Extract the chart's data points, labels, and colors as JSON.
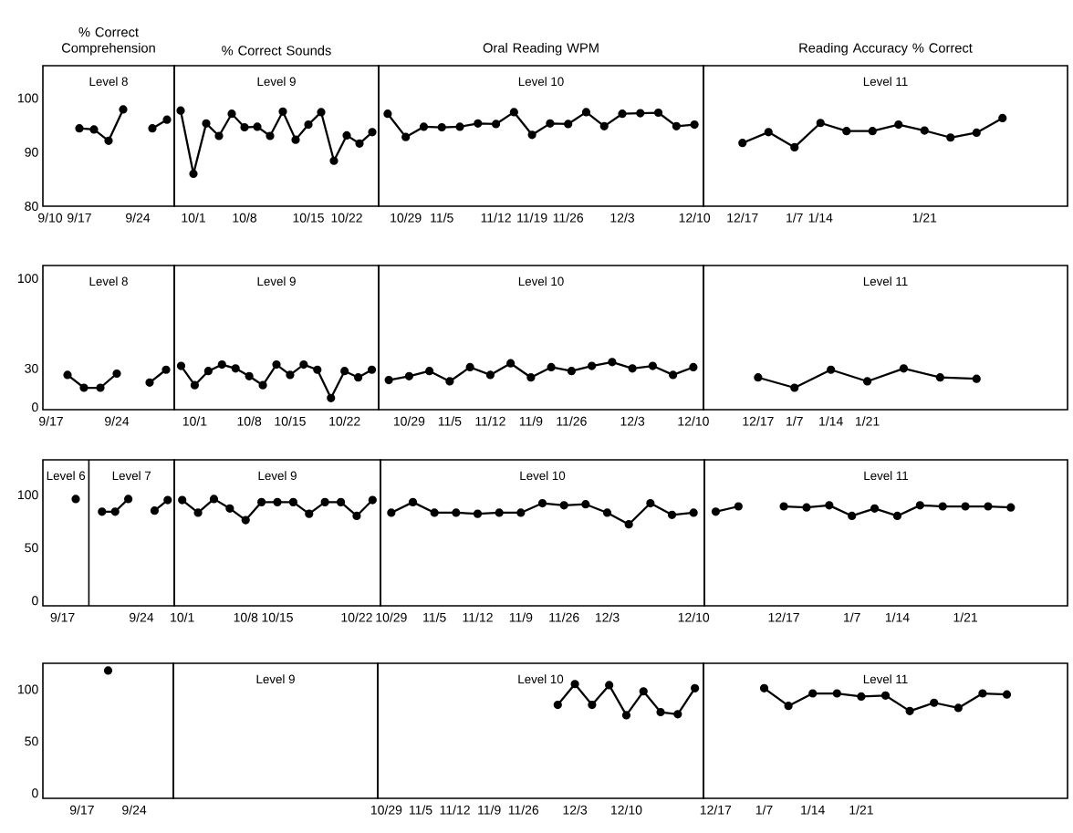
{
  "chart_data": [
    {
      "type": "line",
      "title": "% Correct Comprehension",
      "subtitle": "Level 8",
      "categories": [
        "9/10",
        null,
        "9/17",
        null,
        null,
        null,
        "9/24",
        null,
        null
      ],
      "values": [
        null,
        null,
        94.4,
        94.2,
        92.1,
        97.9,
        null,
        94.4,
        96
      ],
      "color": "#000000",
      "marker": "circle",
      "line_style": "solid",
      "ylim": [
        80,
        106
      ],
      "yticks": [
        80,
        90,
        100
      ]
    },
    {
      "type": "line",
      "title": "% Correct Sounds",
      "subtitle": "Level 9",
      "categories": [
        null,
        "10/1",
        null,
        null,
        null,
        "10/8",
        null,
        null,
        null,
        null,
        "10/15",
        null,
        null,
        "10/22",
        null,
        null
      ],
      "values": [
        97.7,
        86,
        95.3,
        93,
        97.1,
        94.6,
        94.7,
        93,
        97.5,
        92.3,
        95.1,
        97.4,
        88.4,
        93.1,
        91.6,
        93.7
      ],
      "color": "#000000",
      "marker": "circle",
      "line_style": "solid",
      "ylim": [
        80,
        106
      ],
      "yticks": [
        80,
        90,
        100
      ],
      "tick_labels": "x"
    },
    {
      "type": "line",
      "title": "Oral Reading WPM",
      "subtitle": "Level 10",
      "categories": [
        null,
        "10/29",
        null,
        "11/5",
        null,
        null,
        "11/12",
        null,
        "11/19",
        null,
        "11/26",
        null,
        null,
        "12/3",
        null,
        null,
        null,
        "12/10"
      ],
      "values": [
        97.1,
        92.8,
        94.7,
        94.6,
        94.7,
        95.3,
        95.2,
        97.4,
        93.2,
        95.3,
        95.2,
        97.4,
        94.8,
        97.1,
        97.2,
        97.3,
        94.8,
        95.1
      ],
      "color": "#000000",
      "marker": "circle",
      "line_style": "solid",
      "ylim": [
        80,
        106
      ],
      "yticks": [
        80,
        90,
        100
      ],
      "tick_labels": "x"
    },
    {
      "type": "line",
      "title": "Reading Accuracy % Correct",
      "subtitle": "Level 11",
      "categories": [
        null,
        "12/17",
        null,
        "1/7",
        "1/14",
        null,
        null,
        null,
        "1/21",
        null,
        null,
        null,
        null,
        null
      ],
      "values": [
        null,
        91.7,
        93.7,
        90.9,
        95.4,
        93.9,
        93.9,
        95.1,
        94,
        92.7,
        93.6,
        96.3,
        null,
        null
      ],
      "color": "#000000",
      "marker": "circle",
      "line_style": "solid",
      "ylim": [
        80,
        106
      ],
      "yticks": [
        80,
        90,
        100
      ],
      "tick_labels": "x"
    },
    {
      "type": "line",
      "subtitle": "Level 8",
      "categories": [
        "9/17",
        null,
        null,
        null,
        "9/24",
        null,
        null,
        null
      ],
      "values": [
        null,
        25,
        15,
        15,
        26,
        null,
        19,
        29
      ],
      "color": "#000000",
      "marker": "circle",
      "line_style": "solid",
      "ylim": [
        -2,
        110
      ],
      "yticks": [
        0,
        30,
        100
      ]
    },
    {
      "type": "line",
      "subtitle": "Level 9",
      "categories": [
        null,
        "10/1",
        null,
        null,
        null,
        "10/8",
        null,
        null,
        "10/15",
        null,
        null,
        null,
        "10/22",
        null,
        null
      ],
      "values": [
        32,
        17,
        28,
        33,
        30,
        24,
        17,
        33,
        25,
        33,
        29,
        7,
        28,
        23,
        29
      ],
      "color": "#000000",
      "marker": "circle",
      "line_style": "solid",
      "ylim": [
        -2,
        110
      ],
      "yticks": [
        0,
        30,
        100
      ],
      "tick_labels": "x"
    },
    {
      "type": "line",
      "subtitle": "Level 10",
      "categories": [
        null,
        "10/29",
        null,
        "11/5",
        null,
        "11/12",
        null,
        "11/9",
        null,
        "11/26",
        null,
        null,
        "12/3",
        null,
        null,
        "12/10"
      ],
      "values": [
        21,
        24,
        28,
        20,
        31,
        25,
        34,
        23,
        31,
        28,
        32,
        35,
        30,
        32,
        25,
        31
      ],
      "color": "#000000",
      "marker": "circle",
      "line_style": "solid",
      "ylim": [
        -2,
        110
      ],
      "yticks": [
        0,
        30,
        100
      ],
      "tick_labels": "x"
    },
    {
      "type": "line",
      "subtitle": "Level 11",
      "categories": [
        null,
        "12/17",
        "1/7",
        "1/14",
        "1/21",
        null,
        null,
        null,
        null,
        null
      ],
      "values": [
        null,
        23,
        15,
        29,
        20,
        30,
        23,
        22,
        null,
        null
      ],
      "color": "#000000",
      "marker": "circle",
      "line_style": "solid",
      "ylim": [
        -2,
        110
      ],
      "yticks": [
        0,
        30,
        100
      ],
      "tick_labels": "x"
    },
    {
      "type": "line",
      "subtitle": "Level 6",
      "annotations": [
        "Level 7"
      ],
      "categories": [
        null,
        "9/17",
        null,
        null,
        null,
        null,
        null,
        "9/24",
        null,
        null
      ],
      "values": [
        null,
        null,
        96,
        null,
        84,
        84,
        96,
        null,
        85,
        95
      ],
      "color": "#000000",
      "marker": "circle",
      "line_style": "solid",
      "ylim": [
        -5,
        133
      ],
      "yticks": [
        0,
        50,
        100
      ]
    },
    {
      "type": "line",
      "subtitle": "Level 9",
      "categories": [
        "10/1",
        null,
        null,
        null,
        "10/8",
        null,
        "10/15",
        null,
        null,
        null,
        null,
        "10/22",
        null
      ],
      "values": [
        95,
        83,
        96,
        87,
        76,
        93,
        93,
        93,
        82,
        93,
        93,
        80,
        95
      ],
      "color": "#000000",
      "marker": "circle",
      "line_style": "solid",
      "ylim": [
        -5,
        133
      ],
      "yticks": [
        0,
        50,
        100
      ],
      "tick_labels": "x"
    },
    {
      "type": "line",
      "subtitle": "Level 10",
      "categories": [
        "10/29",
        null,
        "11/5",
        null,
        "11/12",
        null,
        "11/9",
        null,
        "11/26",
        null,
        "12/3",
        null,
        null,
        null,
        "12/10"
      ],
      "values": [
        83,
        93,
        83,
        83,
        82,
        83,
        83,
        92,
        90,
        91,
        83,
        72,
        92,
        81,
        83
      ],
      "color": "#000000",
      "marker": "circle",
      "line_style": "solid",
      "ylim": [
        -5,
        133
      ],
      "yticks": [
        0,
        50,
        100
      ],
      "tick_labels": "x"
    },
    {
      "type": "line",
      "subtitle": "Level 11",
      "categories": [
        null,
        null,
        null,
        "12/17",
        null,
        null,
        "1/7",
        null,
        "1/14",
        null,
        null,
        "1/21",
        null,
        null,
        null,
        null
      ],
      "values": [
        84,
        89,
        null,
        89,
        88,
        90,
        80,
        87,
        80,
        90,
        89,
        89,
        89,
        88,
        null,
        null
      ],
      "color": "#000000",
      "marker": "circle",
      "line_style": "solid",
      "ylim": [
        -5,
        133
      ],
      "yticks": [
        0,
        50,
        100
      ],
      "tick_labels": "x"
    },
    {
      "type": "line",
      "categories": [
        null,
        "9/17",
        null,
        "9/24",
        null
      ],
      "values": [
        null,
        null,
        118,
        null,
        null
      ],
      "color": "#000000",
      "marker": "circle",
      "line_style": "solid",
      "ylim": [
        -5,
        125
      ],
      "yticks": [
        0,
        50,
        100
      ]
    },
    {
      "type": "other",
      "subtitle": "Level 9"
    },
    {
      "type": "line",
      "subtitle": "Level 10",
      "categories": [
        "10/29",
        null,
        "11/5",
        null,
        "11/12",
        null,
        "11/9",
        null,
        "11/26",
        null,
        null,
        "12/3",
        null,
        null,
        "12/10",
        null,
        null,
        null,
        null
      ],
      "values": [
        null,
        null,
        null,
        null,
        null,
        null,
        null,
        null,
        null,
        null,
        85,
        105,
        85,
        104,
        75,
        98,
        78,
        76,
        101
      ],
      "color": "#000000",
      "marker": "circle",
      "line_style": "solid",
      "ylim": [
        -5,
        125
      ],
      "yticks": [
        0,
        50,
        100
      ],
      "tick_labels": "x"
    },
    {
      "type": "line",
      "subtitle": "Level 11",
      "categories": [
        "12/17",
        null,
        "1/7",
        null,
        "1/14",
        null,
        "1/21",
        null,
        null,
        null,
        null,
        null,
        null,
        null,
        null
      ],
      "values": [
        null,
        null,
        101,
        84,
        96,
        96,
        93,
        94,
        79,
        87,
        82,
        96,
        95,
        null,
        null
      ],
      "color": "#000000",
      "marker": "circle",
      "line_style": "solid",
      "ylim": [
        -5,
        125
      ],
      "yticks": [
        0,
        50,
        100
      ],
      "tick_labels": "x"
    }
  ]
}
